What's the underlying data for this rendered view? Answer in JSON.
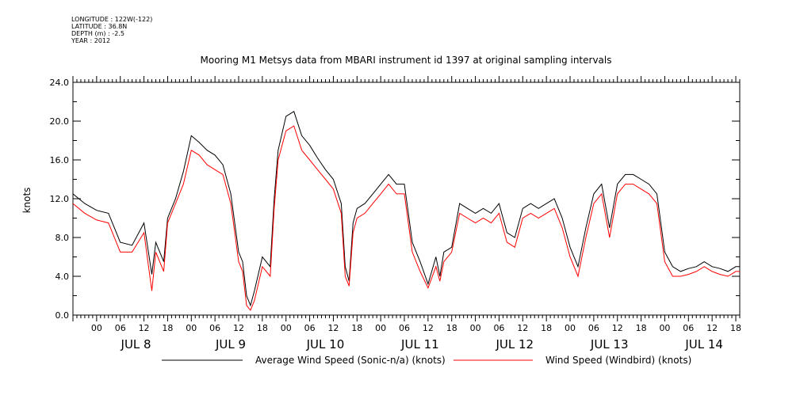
{
  "meta": {
    "longitude": "LONGITUDE : 122W(-122)",
    "latitude": "LATITUDE : 36.8N",
    "depth": "DEPTH (m) : -2.5",
    "year": "YEAR : 2012"
  },
  "chart_data": {
    "type": "line",
    "title": "Mooring M1 Metsys data from MBARI instrument id 1397 at original sampling intervals",
    "ylabel": "knots",
    "xlabel": "",
    "ylim": [
      0,
      24
    ],
    "y_ticks": [
      "0.0",
      "4.0",
      "8.0",
      "12.0",
      "16.0",
      "20.0",
      "24.0"
    ],
    "x_range_hours": [
      -6,
      163
    ],
    "x_tick_labels": [
      "00",
      "06",
      "12",
      "18",
      "00",
      "06",
      "12",
      "18",
      "00",
      "06",
      "12",
      "18",
      "00",
      "06",
      "12",
      "18",
      "00",
      "06",
      "12",
      "18",
      "00",
      "06",
      "12",
      "18",
      "00",
      "06",
      "12",
      "18"
    ],
    "day_labels": [
      "JUL  8",
      "JUL  9",
      "JUL 10",
      "JUL 11",
      "JUL 12",
      "JUL 13",
      "JUL 14"
    ],
    "grid": false,
    "legend_position": "bottom",
    "series": [
      {
        "name": "Average Wind Speed (Sonic-n/a) (knots)",
        "color": "#000000",
        "x": [
          -6,
          -3,
          0,
          3,
          6,
          9,
          12,
          14,
          15,
          17,
          18,
          20,
          22,
          24,
          26,
          28,
          30,
          32,
          34,
          36,
          37,
          38,
          39,
          40,
          42,
          44,
          45,
          46,
          48,
          50,
          52,
          54,
          56,
          58,
          60,
          62,
          63,
          64,
          65,
          66,
          68,
          70,
          72,
          74,
          76,
          78,
          80,
          82,
          84,
          86,
          87,
          88,
          90,
          92,
          94,
          96,
          98,
          100,
          102,
          104,
          106,
          108,
          110,
          112,
          114,
          116,
          118,
          120,
          122,
          124,
          126,
          128,
          130,
          132,
          134,
          136,
          138,
          140,
          142,
          144,
          146,
          148,
          150,
          152,
          154,
          156,
          158,
          160,
          162,
          163
        ],
        "y": [
          12.5,
          11.5,
          10.8,
          10.5,
          7.5,
          7.2,
          9.5,
          4.2,
          7.5,
          5.5,
          10.0,
          12.0,
          14.8,
          18.5,
          17.8,
          17.0,
          16.5,
          15.5,
          12.5,
          6.5,
          5.5,
          2.0,
          1.0,
          2.5,
          6.0,
          5.0,
          12.0,
          17.0,
          20.5,
          21.0,
          18.5,
          17.5,
          16.2,
          15.0,
          14.0,
          11.5,
          5.0,
          3.5,
          9.5,
          11.0,
          11.5,
          12.5,
          13.5,
          14.5,
          13.5,
          13.5,
          7.5,
          5.5,
          3.2,
          6.0,
          4.0,
          6.5,
          7.0,
          11.5,
          11.0,
          10.5,
          11.0,
          10.5,
          11.5,
          8.5,
          8.0,
          11.0,
          11.5,
          11.0,
          11.5,
          12.0,
          10.0,
          7.0,
          5.0,
          9.0,
          12.5,
          13.5,
          9.0,
          13.5,
          14.5,
          14.5,
          14.0,
          13.5,
          12.5,
          6.5,
          5.0,
          4.5,
          4.8,
          5.0,
          5.5,
          5.0,
          4.8,
          4.5,
          5.0,
          5.0
        ]
      },
      {
        "name": "Wind Speed (Windbird) (knots)",
        "color": "#ff0000",
        "x": [
          -6,
          -3,
          0,
          3,
          6,
          9,
          12,
          14,
          15,
          17,
          18,
          20,
          22,
          24,
          26,
          28,
          30,
          32,
          34,
          36,
          37,
          38,
          39,
          40,
          42,
          44,
          45,
          46,
          48,
          50,
          52,
          54,
          56,
          58,
          60,
          62,
          63,
          64,
          65,
          66,
          68,
          70,
          72,
          74,
          76,
          78,
          80,
          82,
          84,
          86,
          87,
          88,
          90,
          92,
          94,
          96,
          98,
          100,
          102,
          104,
          106,
          108,
          110,
          112,
          114,
          116,
          118,
          120,
          122,
          124,
          126,
          128,
          130,
          132,
          134,
          136,
          138,
          140,
          142,
          144,
          146,
          148,
          150,
          152,
          154,
          156,
          158,
          160,
          162,
          163
        ],
        "y": [
          11.5,
          10.5,
          9.8,
          9.5,
          6.5,
          6.5,
          8.5,
          2.5,
          6.5,
          4.5,
          9.5,
          11.5,
          13.5,
          17.0,
          16.5,
          15.5,
          15.0,
          14.5,
          11.5,
          5.5,
          4.5,
          1.0,
          0.5,
          1.5,
          5.0,
          4.0,
          11.0,
          16.0,
          19.0,
          19.5,
          17.0,
          16.0,
          15.0,
          14.0,
          13.0,
          10.5,
          4.0,
          3.0,
          8.5,
          10.0,
          10.5,
          11.5,
          12.5,
          13.5,
          12.5,
          12.5,
          6.5,
          4.5,
          2.8,
          5.0,
          3.5,
          5.5,
          6.5,
          10.5,
          10.0,
          9.5,
          10.0,
          9.5,
          10.5,
          7.5,
          7.0,
          10.0,
          10.5,
          10.0,
          10.5,
          11.0,
          9.0,
          6.0,
          4.0,
          8.0,
          11.5,
          12.5,
          8.0,
          12.5,
          13.5,
          13.5,
          13.0,
          12.5,
          11.5,
          5.5,
          4.0,
          4.0,
          4.2,
          4.5,
          5.0,
          4.5,
          4.2,
          4.0,
          4.5,
          4.5
        ]
      }
    ]
  }
}
